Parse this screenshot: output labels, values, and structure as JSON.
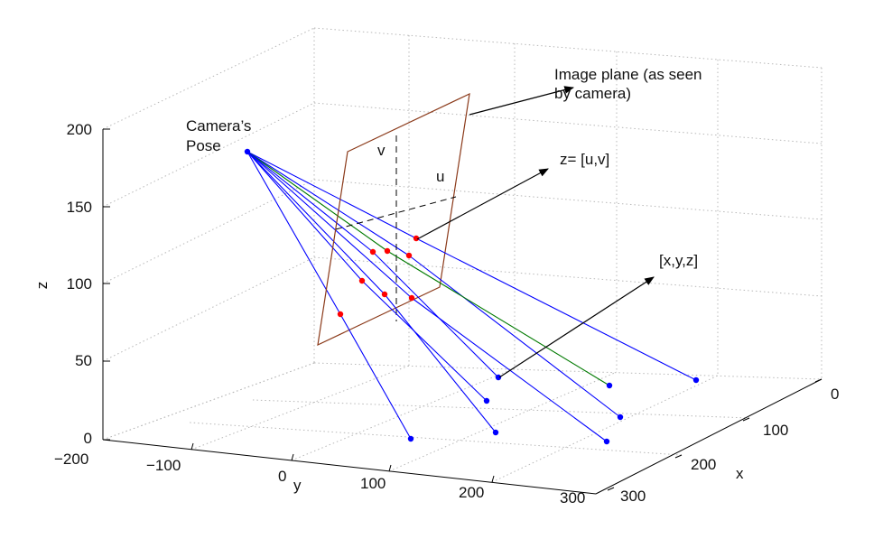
{
  "figure": {
    "axis_labels": {
      "x": "x",
      "y": "y",
      "z": "z"
    },
    "z_ticks": [
      "0",
      "50",
      "100",
      "150",
      "200"
    ],
    "y_ticks": [
      "−200",
      "−100",
      "0",
      "100",
      "200",
      "300"
    ],
    "x_ticks": [
      "0",
      "100",
      "200",
      "300"
    ],
    "annotations": {
      "camera_pose_line1": "Camera’s",
      "camera_pose_line2": "Pose",
      "image_plane_line1": "Image plane (as seen",
      "image_plane_line2": "by camera)",
      "image_point": "z= [u,v]",
      "world_point": "[x,y,z]",
      "u_axis": "u",
      "v_axis": "v"
    },
    "colors": {
      "ray": "#0000ff",
      "highlight_ray": "#007a00",
      "image_plane": "#8b3a1a",
      "projected_point": "#ff0000",
      "world_point": "#0000ff",
      "grid": "#b8b8b8"
    }
  }
}
